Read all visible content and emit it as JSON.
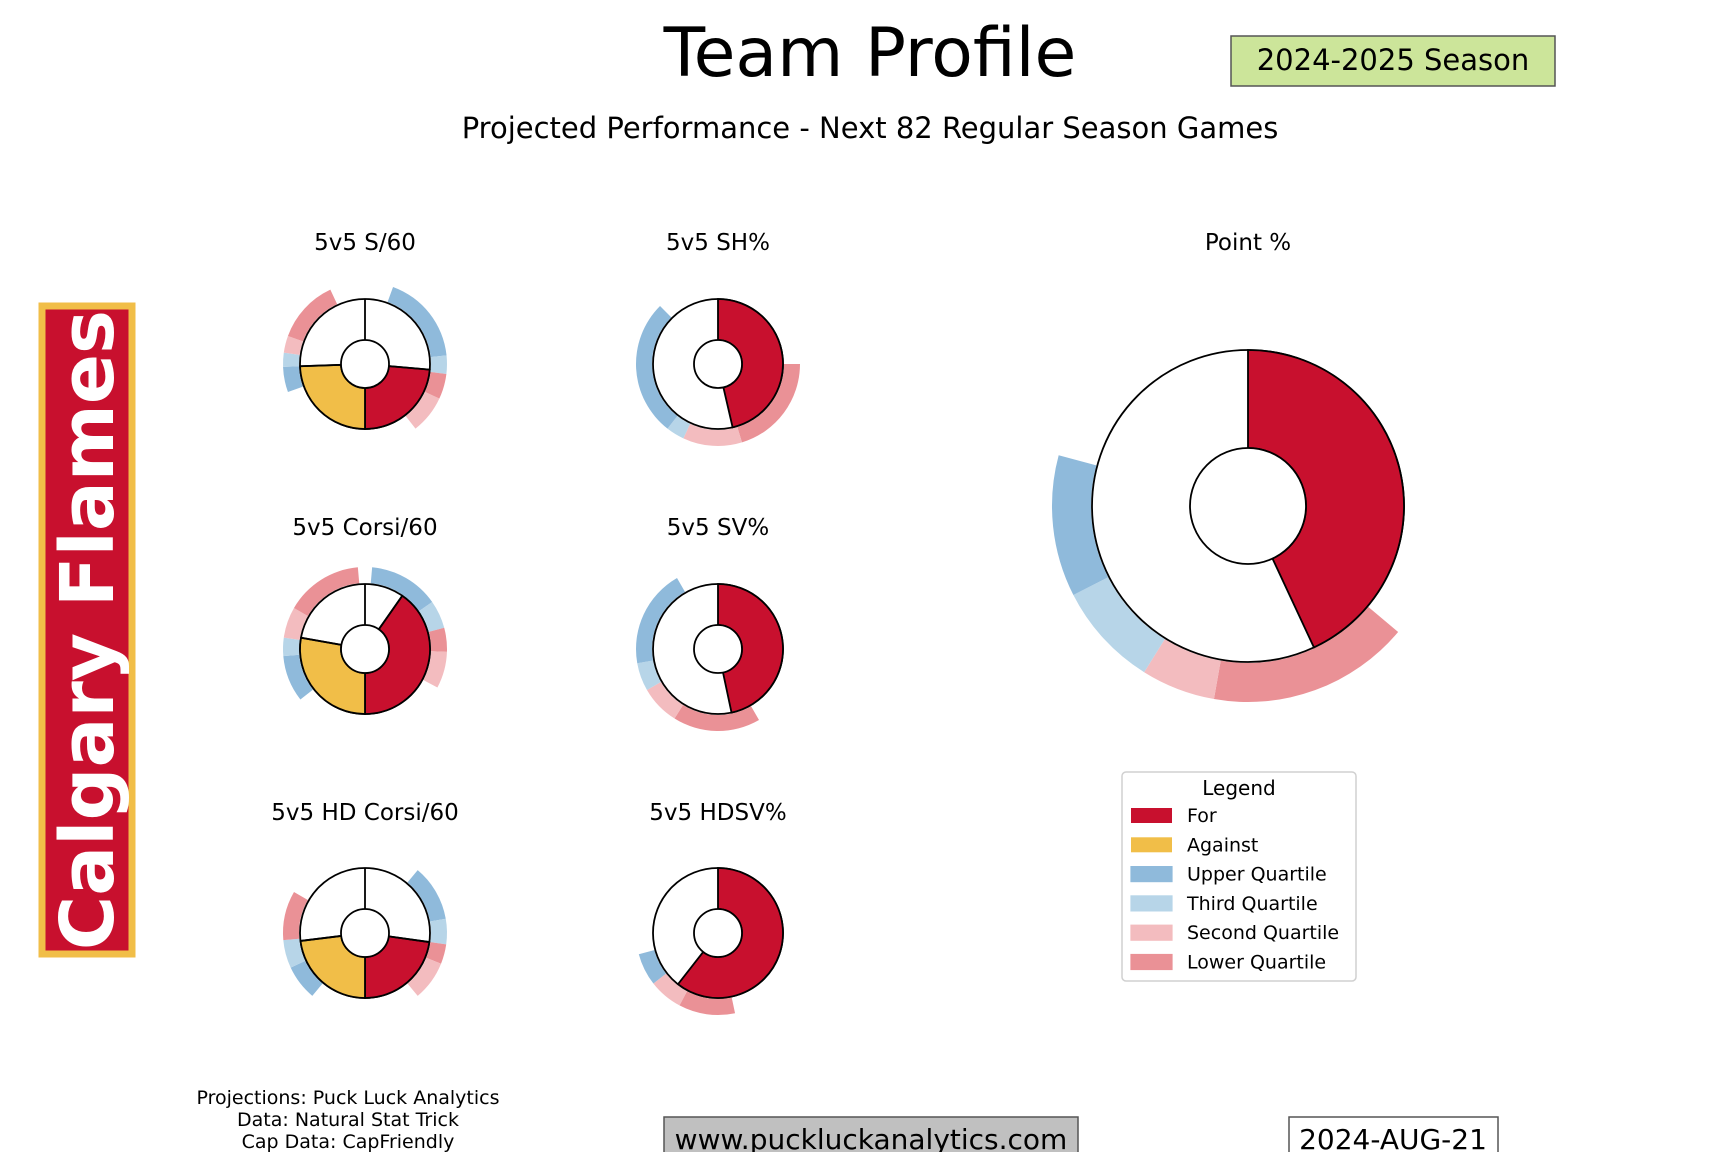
{
  "header": {
    "title": "Team Profile",
    "subtitle": "Projected Performance - Next 82 Regular Season Games",
    "season": "2024-2025 Season"
  },
  "team": {
    "name": "Calgary Flames"
  },
  "legend": {
    "title": "Legend",
    "items": [
      {
        "label": "For",
        "color": "#c8102e"
      },
      {
        "label": "Against",
        "color": "#f1be48"
      },
      {
        "label": "Upper Quartile",
        "color": "#8fbadb"
      },
      {
        "label": "Third Quartile",
        "color": "#b7d5e8"
      },
      {
        "label": "Second Quartile",
        "color": "#f3bcbf"
      },
      {
        "label": "Lower Quartile",
        "color": "#ea9196"
      }
    ]
  },
  "footer": {
    "credits": [
      "Projections: Puck Luck Analytics",
      "Data: Natural Stat Trick",
      "Cap Data: CapFriendly"
    ],
    "website": "www.puckluckanalytics.com",
    "date": "2024-AUG-21"
  },
  "colors": {
    "for": "#c8102e",
    "against": "#f1be48",
    "team_box_border": "#f1be48",
    "season_box_bg": "#cce59a",
    "website_box_bg": "#c0c0c0"
  },
  "chart_data": [
    {
      "type": "pie",
      "title": "5v5 S/60",
      "note": "two-metric donut: For and Against shares (degrees of the circle), with quartile rings",
      "slices": [
        {
          "name": "For",
          "start_deg": 95,
          "end_deg": 180
        },
        {
          "name": "Against",
          "start_deg": 180,
          "end_deg": 268
        }
      ],
      "quartile_ring": [
        {
          "q": "upper",
          "start_deg": 20,
          "end_deg": 84
        },
        {
          "q": "third",
          "start_deg": 84,
          "end_deg": 97
        },
        {
          "q": "lower",
          "start_deg": 97,
          "end_deg": 115
        },
        {
          "q": "second",
          "start_deg": 115,
          "end_deg": 142
        },
        {
          "q": "upper",
          "start_deg": 250,
          "end_deg": 268
        },
        {
          "q": "third",
          "start_deg": 268,
          "end_deg": 278
        },
        {
          "q": "second",
          "start_deg": 278,
          "end_deg": 290
        },
        {
          "q": "lower",
          "start_deg": 290,
          "end_deg": 335
        }
      ]
    },
    {
      "type": "pie",
      "title": "5v5 SH%",
      "slices": [
        {
          "name": "For",
          "start_deg": 0,
          "end_deg": 167
        }
      ],
      "quartile_ring": [
        {
          "q": "lower",
          "start_deg": 90,
          "end_deg": 163
        },
        {
          "q": "second",
          "start_deg": 163,
          "end_deg": 205
        },
        {
          "q": "third",
          "start_deg": 205,
          "end_deg": 218
        },
        {
          "q": "upper",
          "start_deg": 218,
          "end_deg": 315
        }
      ]
    },
    {
      "type": "pie",
      "title": "5v5 Corsi/60",
      "slices": [
        {
          "name": "For",
          "start_deg": 35,
          "end_deg": 180
        },
        {
          "name": "Against",
          "start_deg": 180,
          "end_deg": 280
        }
      ],
      "quartile_ring": [
        {
          "q": "upper",
          "start_deg": 5,
          "end_deg": 55
        },
        {
          "q": "third",
          "start_deg": 55,
          "end_deg": 75
        },
        {
          "q": "lower",
          "start_deg": 75,
          "end_deg": 92
        },
        {
          "q": "second",
          "start_deg": 92,
          "end_deg": 118
        },
        {
          "q": "upper",
          "start_deg": 232,
          "end_deg": 265
        },
        {
          "q": "third",
          "start_deg": 265,
          "end_deg": 278
        },
        {
          "q": "second",
          "start_deg": 278,
          "end_deg": 300
        },
        {
          "q": "lower",
          "start_deg": 300,
          "end_deg": 355
        }
      ]
    },
    {
      "type": "pie",
      "title": "5v5 SV%",
      "slices": [
        {
          "name": "For",
          "start_deg": 0,
          "end_deg": 168
        }
      ],
      "quartile_ring": [
        {
          "q": "lower",
          "start_deg": 150,
          "end_deg": 212
        },
        {
          "q": "second",
          "start_deg": 212,
          "end_deg": 240
        },
        {
          "q": "third",
          "start_deg": 240,
          "end_deg": 260
        },
        {
          "q": "upper",
          "start_deg": 260,
          "end_deg": 330
        }
      ]
    },
    {
      "type": "pie",
      "title": "5v5 HD Corsi/60",
      "slices": [
        {
          "name": "For",
          "start_deg": 98,
          "end_deg": 180
        },
        {
          "name": "Against",
          "start_deg": 180,
          "end_deg": 263
        }
      ],
      "quartile_ring": [
        {
          "q": "upper",
          "start_deg": 40,
          "end_deg": 80
        },
        {
          "q": "third",
          "start_deg": 80,
          "end_deg": 98
        },
        {
          "q": "lower",
          "start_deg": 98,
          "end_deg": 112
        },
        {
          "q": "second",
          "start_deg": 112,
          "end_deg": 140
        },
        {
          "q": "upper",
          "start_deg": 220,
          "end_deg": 245
        },
        {
          "q": "third",
          "start_deg": 245,
          "end_deg": 265
        },
        {
          "q": "lower",
          "start_deg": 265,
          "end_deg": 300
        }
      ]
    },
    {
      "type": "pie",
      "title": "5v5 HDSV%",
      "slices": [
        {
          "name": "For",
          "start_deg": 0,
          "end_deg": 218
        }
      ],
      "quartile_ring": [
        {
          "q": "lower",
          "start_deg": 168,
          "end_deg": 208
        },
        {
          "q": "second",
          "start_deg": 208,
          "end_deg": 232
        },
        {
          "q": "upper",
          "start_deg": 232,
          "end_deg": 255
        }
      ]
    },
    {
      "type": "pie",
      "title": "Point %",
      "slices": [
        {
          "name": "For",
          "start_deg": 0,
          "end_deg": 155
        }
      ],
      "quartile_ring": [
        {
          "q": "lower",
          "start_deg": 130,
          "end_deg": 190
        },
        {
          "q": "second",
          "start_deg": 190,
          "end_deg": 212
        },
        {
          "q": "third",
          "start_deg": 212,
          "end_deg": 243
        },
        {
          "q": "upper",
          "start_deg": 243,
          "end_deg": 285
        }
      ]
    }
  ]
}
